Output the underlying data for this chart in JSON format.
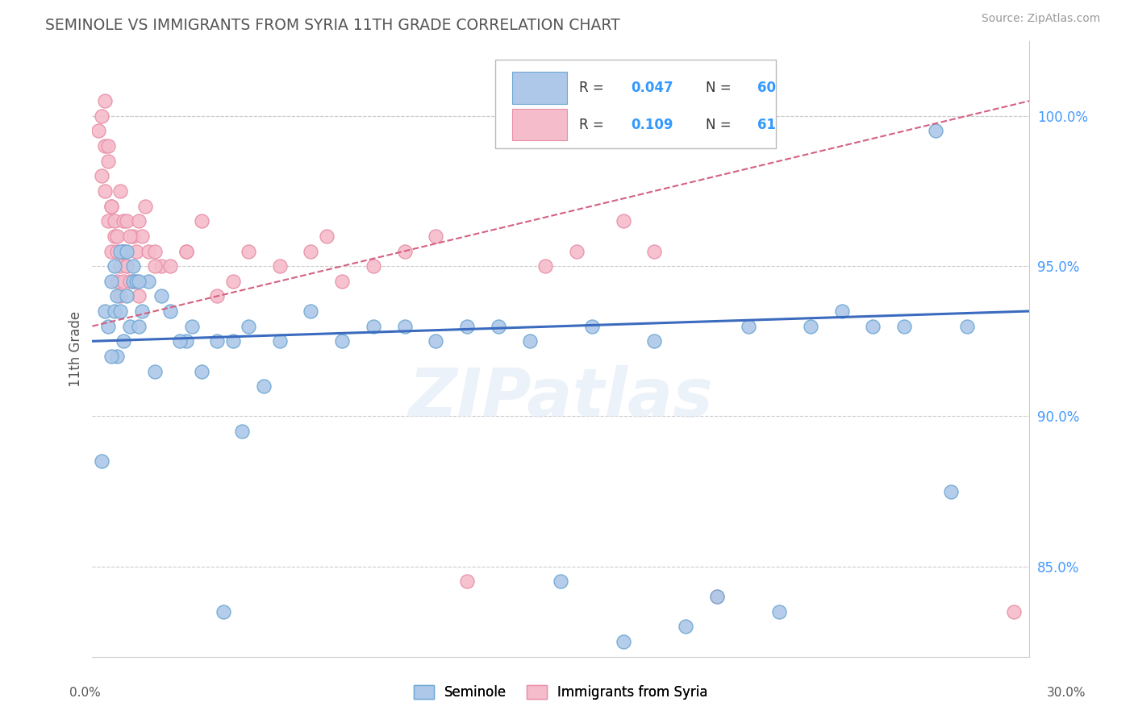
{
  "title": "SEMINOLE VS IMMIGRANTS FROM SYRIA 11TH GRADE CORRELATION CHART",
  "source": "Source: ZipAtlas.com",
  "ylabel": "11th Grade",
  "xlim": [
    0.0,
    30.0
  ],
  "ylim": [
    82.0,
    102.5
  ],
  "yticks": [
    85.0,
    90.0,
    95.0,
    100.0
  ],
  "ytick_labels": [
    "85.0%",
    "90.0%",
    "95.0%",
    "100.0%"
  ],
  "legend_r1_text": "R = ",
  "legend_r1_val": "0.047",
  "legend_n1_text": "N = ",
  "legend_n1_val": "60",
  "legend_r2_text": "R = ",
  "legend_r2_val": "0.109",
  "legend_n2_text": "N = ",
  "legend_n2_val": "61",
  "seminole_color": "#adc8e8",
  "syria_color": "#f5bccb",
  "seminole_edge": "#6fa8d4",
  "syria_edge": "#e890a8",
  "trend_blue": "#3b6bbf",
  "trend_pink": "#d46080",
  "background": "#ffffff",
  "grid_color": "#cccccc",
  "watermark": "ZIPatlas",
  "legend_box_blue": "#adc8e8",
  "legend_box_pink": "#f5bccb",
  "seminole_x": [
    0.3,
    0.4,
    0.5,
    0.6,
    0.7,
    0.8,
    0.8,
    0.9,
    1.0,
    1.0,
    1.1,
    1.2,
    1.3,
    1.4,
    1.5,
    1.6,
    1.8,
    2.0,
    2.2,
    2.5,
    3.0,
    3.5,
    4.0,
    4.5,
    5.0,
    6.0,
    7.0,
    8.0,
    9.0,
    10.0,
    11.0,
    12.0,
    13.0,
    14.0,
    15.0,
    16.0,
    17.0,
    18.0,
    19.0,
    20.0,
    21.0,
    22.0,
    23.0,
    24.0,
    25.0,
    26.0,
    27.0,
    28.0,
    3.2,
    4.2,
    0.6,
    0.7,
    0.9,
    1.1,
    1.3,
    1.5,
    2.8,
    4.8,
    27.5,
    5.5
  ],
  "seminole_y": [
    88.5,
    93.5,
    93.0,
    94.5,
    93.5,
    94.0,
    92.0,
    93.5,
    92.5,
    95.5,
    94.0,
    93.0,
    94.5,
    94.5,
    93.0,
    93.5,
    94.5,
    91.5,
    94.0,
    93.5,
    92.5,
    91.5,
    92.5,
    92.5,
    93.0,
    92.5,
    93.5,
    92.5,
    93.0,
    93.0,
    92.5,
    93.0,
    93.0,
    92.5,
    84.5,
    93.0,
    82.5,
    92.5,
    83.0,
    84.0,
    93.0,
    83.5,
    93.0,
    93.5,
    93.0,
    93.0,
    99.5,
    93.0,
    93.0,
    83.5,
    92.0,
    95.0,
    95.5,
    95.5,
    95.0,
    94.5,
    92.5,
    89.5,
    87.5,
    91.0
  ],
  "syria_x": [
    0.2,
    0.3,
    0.3,
    0.4,
    0.4,
    0.5,
    0.5,
    0.6,
    0.6,
    0.7,
    0.7,
    0.8,
    0.8,
    0.9,
    0.9,
    1.0,
    1.0,
    1.0,
    1.1,
    1.1,
    1.2,
    1.3,
    1.4,
    1.5,
    1.6,
    1.7,
    1.8,
    2.0,
    2.2,
    2.5,
    3.0,
    3.5,
    4.0,
    5.0,
    6.0,
    7.0,
    7.5,
    9.0,
    10.0,
    11.0,
    14.5,
    15.5,
    17.0,
    18.0,
    4.5,
    0.4,
    0.5,
    0.6,
    0.8,
    0.9,
    1.0,
    1.1,
    1.2,
    1.3,
    1.5,
    2.0,
    3.0,
    8.0,
    12.0,
    20.0,
    29.5
  ],
  "syria_y": [
    99.5,
    100.0,
    98.0,
    99.0,
    97.5,
    98.5,
    96.5,
    97.0,
    95.5,
    96.0,
    96.5,
    94.5,
    96.0,
    95.0,
    97.5,
    94.5,
    95.5,
    96.5,
    95.0,
    96.5,
    94.5,
    96.0,
    95.5,
    94.0,
    96.0,
    97.0,
    95.5,
    95.5,
    95.0,
    95.0,
    95.5,
    96.5,
    94.0,
    95.5,
    95.0,
    95.5,
    96.0,
    95.0,
    95.5,
    96.0,
    95.0,
    95.5,
    96.5,
    95.5,
    94.5,
    100.5,
    99.0,
    97.0,
    95.5,
    94.0,
    95.5,
    95.0,
    96.0,
    94.5,
    96.5,
    95.0,
    95.5,
    94.5,
    84.5,
    84.0,
    83.5
  ]
}
